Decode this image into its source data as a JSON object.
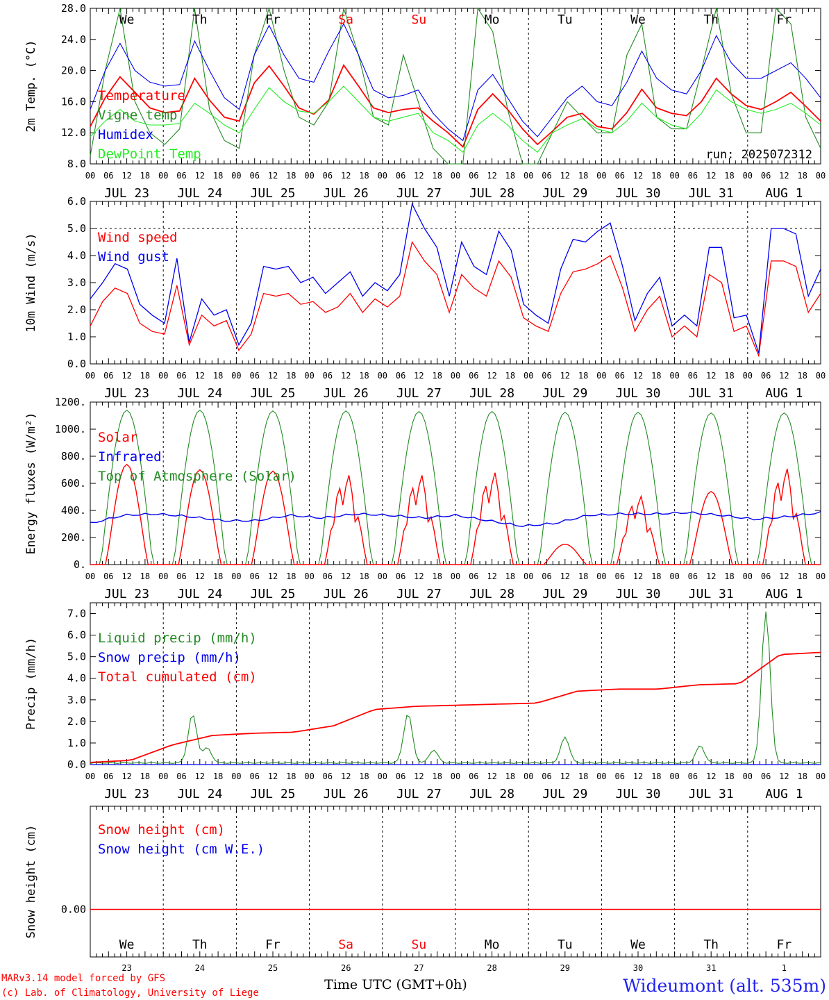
{
  "footer": {
    "model": "MARv3.14 model forced by GFS",
    "credit": "(c) Lab. of Climatology, University of Liege",
    "xtitle": "Time UTC (GMT+0h)",
    "station": "Wideumont (alt. 535m)"
  },
  "days": {
    "dates": [
      "JUL 23",
      "JUL 24",
      "JUL 25",
      "JUL 26",
      "JUL 27",
      "JUL 28",
      "JUL 29",
      "JUL 30",
      "JUL 31",
      "AUG  1"
    ],
    "dow": [
      "We",
      "Th",
      "Fr",
      "Sa",
      "Su",
      "Mo",
      "Tu",
      "We",
      "Th",
      "Fr"
    ],
    "dow_colors": [
      "#000000",
      "#000000",
      "#000000",
      "#ff0000",
      "#ff0000",
      "#000000",
      "#000000",
      "#000000",
      "#000000",
      "#000000"
    ],
    "daynum": [
      "23",
      "24",
      "25",
      "26",
      "27",
      "28",
      "29",
      "30",
      "31",
      "1"
    ],
    "hours": [
      "00",
      "06",
      "12",
      "18"
    ]
  },
  "chart_data": [
    {
      "type": "line",
      "id": "temp",
      "ylabel": "2m Temp. (°C)",
      "ylim": [
        8,
        28
      ],
      "yticks": [
        "8.0",
        "12.0",
        "16.0",
        "20.0",
        "24.0",
        "28.0"
      ],
      "annotation": "run: 2025072312",
      "series": [
        {
          "name": "Temperature",
          "color": "#ff0000",
          "values": [
            12.8,
            16.5,
            19.2,
            17.2,
            15.2,
            14.6,
            14.8,
            19.0,
            16.2,
            14.0,
            13.5,
            18.4,
            20.6,
            18.0,
            15.2,
            14.4,
            16.2,
            20.7,
            18.0,
            15.2,
            14.6,
            15.0,
            15.2,
            13.5,
            12.0,
            10.2,
            15.0,
            17.0,
            15.0,
            12.5,
            10.5,
            12.2,
            14.0,
            14.5,
            12.8,
            12.5,
            14.6,
            17.6,
            15.2,
            14.5,
            14.2,
            16.0,
            19.0,
            17.0,
            15.5,
            15.0,
            16.0,
            17.2,
            15.4,
            13.5
          ]
        },
        {
          "name": "Vigne temp",
          "color": "#228b22",
          "values": [
            9.0,
            20.0,
            28.0,
            16.0,
            12.0,
            10.5,
            12.5,
            28.0,
            15.0,
            11.0,
            10.0,
            22.0,
            28.0,
            20.0,
            14.0,
            13.0,
            16.0,
            28.0,
            22.0,
            14.0,
            13.0,
            22.0,
            16.0,
            10.0,
            7.5,
            8.0,
            28.0,
            25.0,
            15.0,
            8.0,
            7.0,
            12.0,
            16.0,
            14.0,
            12.0,
            12.0,
            22.0,
            26.0,
            14.0,
            12.5,
            12.5,
            20.0,
            28.0,
            17.0,
            12.0,
            12.0,
            28.0,
            26.0,
            14.0,
            10.0
          ]
        },
        {
          "name": "Humidex",
          "color": "#0000ee",
          "values": [
            15.0,
            20.0,
            23.5,
            20.0,
            18.5,
            18.0,
            18.2,
            23.8,
            20.0,
            16.5,
            15.0,
            22.0,
            25.8,
            22.0,
            19.0,
            18.5,
            22.5,
            26.0,
            22.0,
            17.5,
            16.5,
            16.8,
            17.5,
            14.5,
            12.5,
            11.0,
            17.5,
            19.5,
            16.5,
            13.5,
            11.5,
            14.0,
            16.5,
            18.0,
            16.0,
            15.5,
            18.5,
            22.5,
            19.0,
            17.5,
            17.0,
            20.0,
            24.5,
            21.0,
            19.0,
            19.0,
            20.0,
            21.0,
            19.0,
            16.5
          ]
        },
        {
          "name": "DewPoint Temp",
          "color": "#22ee22",
          "values": [
            11.5,
            13.5,
            15.0,
            13.5,
            13.0,
            13.0,
            13.2,
            15.8,
            14.5,
            13.0,
            12.0,
            15.0,
            17.8,
            16.0,
            14.8,
            14.5,
            16.0,
            18.0,
            16.0,
            14.0,
            13.5,
            14.0,
            14.5,
            12.0,
            11.0,
            9.5,
            13.0,
            14.5,
            13.0,
            11.0,
            9.5,
            12.0,
            13.0,
            13.8,
            12.5,
            12.0,
            13.5,
            15.8,
            14.0,
            13.0,
            12.5,
            14.5,
            17.5,
            16.0,
            15.0,
            14.5,
            15.0,
            15.8,
            14.5,
            13.0
          ]
        }
      ]
    },
    {
      "type": "line",
      "id": "wind",
      "ylabel": "10m Wind (m/s)",
      "ylim": [
        0,
        6
      ],
      "yticks": [
        "0.0",
        "1.0",
        "2.0",
        "3.0",
        "4.0",
        "5.0",
        "6.0"
      ],
      "series": [
        {
          "name": "Wind speed",
          "color": "#ff0000",
          "values": [
            1.4,
            2.3,
            2.8,
            2.6,
            1.5,
            1.2,
            1.1,
            2.9,
            0.7,
            1.8,
            1.4,
            1.6,
            0.5,
            1.1,
            2.6,
            2.5,
            2.6,
            2.2,
            2.3,
            1.9,
            2.1,
            2.6,
            1.9,
            2.4,
            2.1,
            2.5,
            4.5,
            3.8,
            3.3,
            1.9,
            3.3,
            2.8,
            2.5,
            3.8,
            3.2,
            1.7,
            1.4,
            1.2,
            2.6,
            3.4,
            3.5,
            3.7,
            4.0,
            2.8,
            1.2,
            2.0,
            2.5,
            1.0,
            1.4,
            1.0,
            3.3,
            3.0,
            1.2,
            1.4,
            0.3,
            3.8,
            3.8,
            3.6,
            1.9,
            2.6
          ]
        },
        {
          "name": "Wind gust",
          "color": "#0000ee",
          "values": [
            2.4,
            3.0,
            3.7,
            3.5,
            2.2,
            1.8,
            1.5,
            3.9,
            0.8,
            2.4,
            1.8,
            2.0,
            0.7,
            1.5,
            3.6,
            3.5,
            3.6,
            3.0,
            3.2,
            2.6,
            3.0,
            3.4,
            2.5,
            3.0,
            2.7,
            3.3,
            5.9,
            5.0,
            4.3,
            2.5,
            4.5,
            3.6,
            3.3,
            4.9,
            4.2,
            2.2,
            1.8,
            1.5,
            3.5,
            4.6,
            4.5,
            4.9,
            5.2,
            3.6,
            1.6,
            2.6,
            3.2,
            1.4,
            1.8,
            1.4,
            4.3,
            4.3,
            1.7,
            1.8,
            0.4,
            5.0,
            5.0,
            4.8,
            2.5,
            3.5
          ]
        }
      ]
    },
    {
      "type": "line",
      "id": "flux",
      "ylabel": "Energy fluxes (W/m²)",
      "ylim": [
        0,
        1200
      ],
      "yticks": [
        "0.",
        "200.",
        "400.",
        "600.",
        "800.",
        "1000.",
        "1200."
      ],
      "series": [
        {
          "name": "Solar",
          "color": "#ff0000",
          "peaks": [
            740,
            700,
            690,
            680,
            680,
            700,
            150,
            520,
            540,
            730
          ],
          "values_note": "daily peak values"
        },
        {
          "name": "Infrared",
          "color": "#0000ee",
          "values": [
            300,
            360,
            370,
            350,
            320,
            320,
            360,
            340,
            370,
            360,
            340,
            360,
            320,
            280,
            300,
            360,
            370,
            370,
            380,
            360,
            330,
            350,
            380
          ]
        },
        {
          "name": "Top of Atmosphere (Solar)",
          "color": "#228b22",
          "peaks": [
            1140,
            1140,
            1135,
            1135,
            1130,
            1130,
            1125,
            1125,
            1120,
            1120
          ],
          "values_note": "daily peak values"
        }
      ]
    },
    {
      "type": "line",
      "id": "precip",
      "ylabel": "Precip (mm/h)",
      "ylim": [
        0,
        7.5
      ],
      "yticks": [
        "0.0",
        "1.0",
        "2.0",
        "3.0",
        "4.0",
        "5.0",
        "6.0",
        "7.0"
      ],
      "series": [
        {
          "name": "Liquid precip (mm/h)",
          "color": "#228b22",
          "spikes": [
            [
              1.4,
              2.25
            ],
            [
              1.6,
              0.7
            ],
            [
              4.35,
              2.3
            ],
            [
              4.7,
              0.6
            ],
            [
              6.5,
              1.2
            ],
            [
              8.35,
              0.8
            ],
            [
              9.25,
              7.0
            ]
          ]
        },
        {
          "name": "Snow precip (mm/h)",
          "color": "#0000ee",
          "values": [
            0
          ]
        },
        {
          "name": "Total cumulated (cm)",
          "color": "#ff0000",
          "values": [
            0.1,
            0.2,
            0.9,
            1.35,
            1.45,
            1.5,
            1.8,
            2.55,
            2.7,
            2.75,
            2.8,
            2.85,
            3.4,
            3.5,
            3.5,
            3.7,
            3.75,
            5.1,
            5.2
          ]
        }
      ]
    },
    {
      "type": "line",
      "id": "snow",
      "ylabel": "Snow height (cm)",
      "ylim": [
        -1,
        1
      ],
      "yticks": [
        "0.00"
      ],
      "series": [
        {
          "name": "Snow height (cm)",
          "color": "#ff0000",
          "values": [
            0
          ]
        },
        {
          "name": "Snow height (cm W.E.)",
          "color": "#0000ee",
          "values": [
            0
          ]
        }
      ]
    }
  ]
}
